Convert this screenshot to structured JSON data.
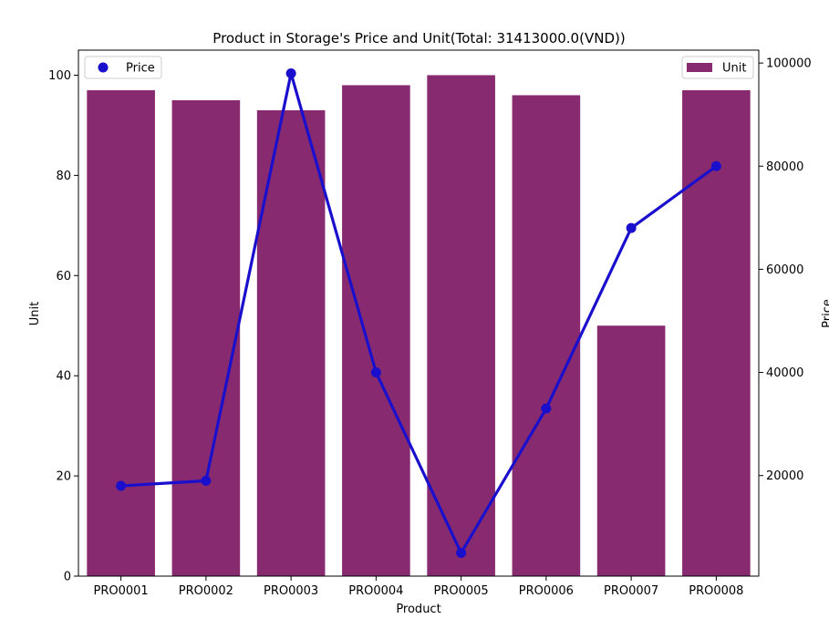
{
  "chart_data": {
    "type": "bar",
    "title": "Product in Storage's Price and Unit(Total: 31413000.0(VND))",
    "xlabel": "Product",
    "ylabel_left": "Unit",
    "ylabel_right": "Price",
    "categories": [
      "PRO0001",
      "PRO0002",
      "PRO0003",
      "PRO0004",
      "PRO0005",
      "PRO0006",
      "PRO0007",
      "PRO0008"
    ],
    "series": [
      {
        "name": "Unit",
        "type": "bar",
        "axis": "left",
        "color": "#882a6f",
        "values": [
          97,
          95,
          93,
          98,
          100,
          96,
          50,
          97
        ]
      },
      {
        "name": "Price",
        "type": "line",
        "axis": "right",
        "color": "#1a0fcc",
        "values": [
          18000,
          19000,
          98000,
          40000,
          5000,
          33000,
          68000,
          80000
        ]
      }
    ],
    "ylim_left": [
      0,
      105
    ],
    "ylim_right": [
      500,
      102500
    ],
    "yticks_left": [
      0,
      20,
      40,
      60,
      80,
      100
    ],
    "yticks_right": [
      20000,
      40000,
      60000,
      80000,
      100000
    ],
    "legend_left": {
      "position": "top-left",
      "label": "Price"
    },
    "legend_right": {
      "position": "top-right",
      "label": "Unit"
    },
    "grid": false
  }
}
